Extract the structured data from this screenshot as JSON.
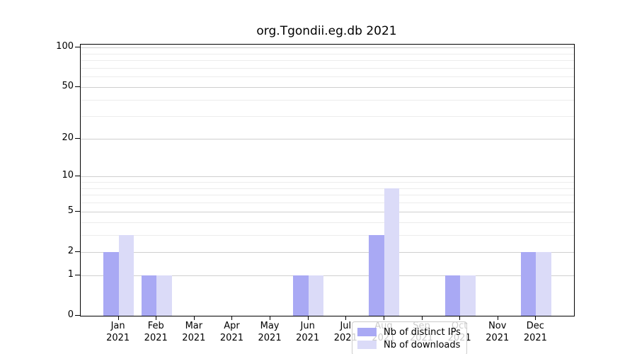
{
  "chart_data": {
    "type": "bar",
    "title": "org.Tgondii.eg.db 2021",
    "categories": [
      "Jan",
      "Feb",
      "Mar",
      "Apr",
      "May",
      "Jun",
      "Jul",
      "Aug",
      "Sep",
      "Oct",
      "Nov",
      "Dec"
    ],
    "year_label": "2021",
    "series": [
      {
        "name": "Nb of distinct IPs",
        "color": "#a9a9f4",
        "values": [
          2,
          1,
          0,
          0,
          0,
          1,
          0,
          3,
          0,
          1,
          0,
          2
        ]
      },
      {
        "name": "Nb of downloads",
        "color": "#dbdbf8",
        "values": [
          3,
          1,
          0,
          0,
          0,
          1,
          0,
          8,
          0,
          1,
          0,
          2
        ]
      }
    ],
    "xlabel": "",
    "ylabel": "",
    "y_axis": {
      "scale": "log1p",
      "major_ticks": [
        0,
        1,
        2,
        5,
        10,
        20,
        50,
        100
      ],
      "minor_ticks": [
        3,
        4,
        6,
        7,
        8,
        9,
        30,
        40,
        60,
        70,
        80,
        90
      ],
      "max": 105
    },
    "grid": "horizontal",
    "legend_position": "inside-bottom-center"
  },
  "colors": {
    "bar_distinct_ips": "#a9a9f4",
    "bar_downloads": "#dbdbf8",
    "grid_major": "#cfcfcf",
    "grid_minor": "#ececec",
    "axis": "#000000",
    "legend_border": "#cccccc"
  }
}
